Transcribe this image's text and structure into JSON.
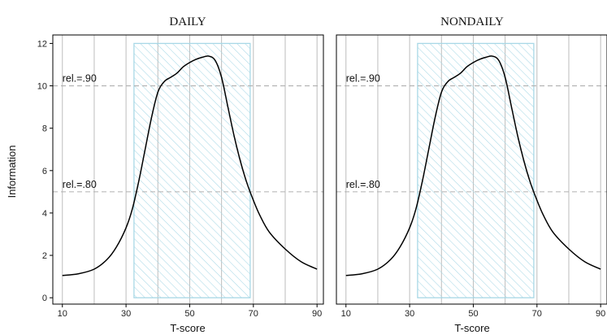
{
  "chart_data": {
    "type": "line",
    "xlabel": "T-score",
    "ylabel": "Information",
    "xlim": [
      7,
      92
    ],
    "ylim": [
      -0.3,
      12.4
    ],
    "xticks": [
      "10",
      "30",
      "50",
      "70",
      "90"
    ],
    "xticks_values": [
      10,
      30,
      50,
      70,
      90
    ],
    "xgrid": [
      10,
      20,
      30,
      40,
      50,
      60,
      70,
      80,
      90
    ],
    "yticks": [
      "0",
      "2",
      "4",
      "6",
      "8",
      "10",
      "12"
    ],
    "yticks_values": [
      0,
      2,
      4,
      6,
      8,
      10,
      12
    ],
    "grid": "vertical",
    "reference_lines": [
      {
        "label": "rel.=.90",
        "y": 10,
        "label_x": 10
      },
      {
        "label": "rel.=.80",
        "y": 5,
        "label_x": 10
      }
    ],
    "shaded_region": {
      "x": [
        32.5,
        69
      ],
      "y": [
        0,
        12
      ],
      "pattern": "diagonal-hatch",
      "color": "#a8d8e6"
    },
    "colors": {
      "curve": "#000000",
      "reference": "#b0b0b0",
      "grid": "#bdbdbd",
      "hatch": "#a8d8e6"
    },
    "panels": [
      {
        "title": "DAILY",
        "x": [
          10,
          15,
          20,
          24,
          27,
          30,
          32,
          34,
          36,
          38,
          40,
          42,
          44,
          46,
          48,
          50,
          52,
          54,
          56,
          58,
          60,
          62,
          64,
          66,
          68,
          70,
          72,
          75,
          80,
          85,
          90
        ],
        "y": [
          1.05,
          1.13,
          1.35,
          1.8,
          2.4,
          3.3,
          4.2,
          5.5,
          7.0,
          8.5,
          9.7,
          10.2,
          10.4,
          10.6,
          10.9,
          11.1,
          11.25,
          11.35,
          11.4,
          11.2,
          10.4,
          9.0,
          7.6,
          6.4,
          5.4,
          4.6,
          3.9,
          3.1,
          2.3,
          1.7,
          1.35
        ]
      },
      {
        "title": "NONDAILY",
        "x": [
          10,
          15,
          20,
          24,
          27,
          30,
          32,
          34,
          36,
          38,
          40,
          42,
          44,
          46,
          48,
          50,
          52,
          54,
          56,
          58,
          60,
          62,
          64,
          66,
          68,
          70,
          72,
          75,
          80,
          85,
          90
        ],
        "y": [
          1.05,
          1.13,
          1.35,
          1.8,
          2.4,
          3.3,
          4.2,
          5.5,
          7.0,
          8.5,
          9.7,
          10.2,
          10.4,
          10.6,
          10.9,
          11.1,
          11.25,
          11.35,
          11.4,
          11.2,
          10.4,
          9.0,
          7.6,
          6.4,
          5.4,
          4.6,
          3.9,
          3.1,
          2.3,
          1.7,
          1.35
        ]
      }
    ]
  }
}
